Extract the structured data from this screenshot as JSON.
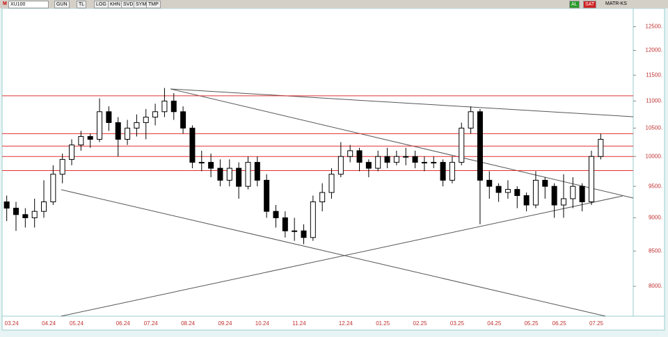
{
  "toolbar": {
    "menu": "M",
    "symbol": "XU100",
    "buttons": [
      "GUN",
      "TL",
      "LOG",
      "KHN",
      "SVD",
      "SYM",
      "TMP"
    ],
    "buy": "AL",
    "sell": "SAT",
    "matrix": "MATR-KS"
  },
  "chart_data": {
    "type": "candlestick",
    "categories": [
      "03.24",
      null,
      null,
      null,
      "04.24",
      null,
      null,
      "05.24",
      null,
      null,
      null,
      null,
      "06.24",
      null,
      null,
      "07.24",
      null,
      null,
      null,
      "08.24",
      null,
      null,
      null,
      "09.24",
      null,
      null,
      null,
      "10.24",
      null,
      null,
      null,
      "11.24",
      null,
      null,
      null,
      null,
      "12.24",
      null,
      null,
      null,
      "01.25",
      null,
      null,
      null,
      "02.25",
      null,
      null,
      null,
      "03.25",
      null,
      null,
      null,
      "04.25",
      null,
      null,
      null,
      "05.25",
      null,
      null,
      "06.25",
      null,
      null,
      null,
      "07.25",
      null,
      null,
      null,
      null
    ],
    "open": [
      9250,
      9150,
      9050,
      9000,
      9100,
      9250,
      9700,
      9950,
      10200,
      10350,
      10300,
      10800,
      10600,
      10300,
      10500,
      10600,
      10700,
      10800,
      11000,
      10800,
      10500,
      9900,
      9900,
      9800,
      9600,
      9800,
      9500,
      9900,
      9600,
      9100,
      9000,
      8800,
      8800,
      8700,
      9250,
      9400,
      9700,
      10000,
      10100,
      9900,
      9800,
      10000,
      9900,
      10000,
      10000,
      9900,
      9900,
      9900,
      9600,
      9900,
      10500,
      10800,
      9600,
      9500,
      9400,
      9450,
      9350,
      9200,
      9600,
      9500,
      9200,
      9300,
      9500,
      9250,
      10000,
      null,
      null,
      null
    ],
    "high": [
      9350,
      9250,
      9150,
      9300,
      9600,
      9850,
      10050,
      10300,
      10450,
      10400,
      11050,
      10900,
      10700,
      10650,
      10750,
      10850,
      10950,
      11250,
      11150,
      10900,
      10550,
      10100,
      10050,
      9950,
      9950,
      9900,
      10000,
      10000,
      9700,
      9200,
      9100,
      9000,
      8900,
      9350,
      9550,
      9800,
      10250,
      10200,
      10150,
      9950,
      10100,
      10150,
      10100,
      10150,
      10100,
      10000,
      10000,
      9950,
      10000,
      10600,
      10900,
      10850,
      9750,
      9550,
      9600,
      9500,
      9400,
      9750,
      9650,
      9550,
      9700,
      9650,
      9550,
      10100,
      10400,
      null,
      null,
      null
    ],
    "low": [
      8950,
      8800,
      8850,
      8850,
      9000,
      9200,
      9550,
      9850,
      10100,
      10150,
      10250,
      10450,
      10000,
      10200,
      10350,
      10300,
      10550,
      10700,
      10650,
      10400,
      9800,
      9750,
      9650,
      9500,
      9500,
      9300,
      9450,
      9500,
      9000,
      8850,
      8700,
      8650,
      8600,
      8650,
      9100,
      9300,
      9650,
      9900,
      9750,
      9650,
      9750,
      9800,
      9850,
      9850,
      9800,
      9750,
      9800,
      9500,
      9550,
      9850,
      10400,
      8900,
      9300,
      9250,
      9300,
      9150,
      9100,
      9150,
      9300,
      9000,
      9000,
      9150,
      9100,
      9200,
      9950,
      null,
      null,
      null
    ],
    "close": [
      9150,
      9050,
      9000,
      9100,
      9250,
      9700,
      9950,
      10200,
      10350,
      10300,
      10800,
      10600,
      10300,
      10500,
      10600,
      10700,
      10800,
      11000,
      10800,
      10500,
      9900,
      9900,
      9800,
      9600,
      9800,
      9500,
      9900,
      9600,
      9100,
      9000,
      8800,
      8800,
      8700,
      9250,
      9400,
      9700,
      10000,
      10100,
      9900,
      9800,
      10000,
      9900,
      10000,
      10000,
      9900,
      9900,
      9900,
      9600,
      9900,
      10500,
      10800,
      9600,
      9500,
      9400,
      9450,
      9350,
      9200,
      9600,
      9500,
      9200,
      9300,
      9500,
      9250,
      10000,
      10300,
      null,
      null,
      null
    ],
    "ylim": [
      7600,
      12900
    ],
    "log_scale": true,
    "yticks": [
      {
        "value": 8000,
        "label": "8000."
      },
      {
        "value": 8500,
        "label": "8500."
      },
      {
        "value": 9000,
        "label": "9000."
      },
      {
        "value": 9500,
        "label": "9500."
      },
      {
        "value": 10000,
        "label": "10000."
      },
      {
        "value": 10500,
        "label": "10500."
      },
      {
        "value": 11000,
        "label": "11000."
      },
      {
        "value": 11500,
        "label": "11500."
      },
      {
        "value": 12000,
        "label": "12000."
      },
      {
        "value": 12500,
        "label": "12500."
      }
    ],
    "hlines": [
      11100,
      10400,
      10180,
      10000,
      9760
    ],
    "hline_color": "#e03030",
    "up_color": "#ffffff",
    "down_color": "#000000",
    "grid": false
  }
}
